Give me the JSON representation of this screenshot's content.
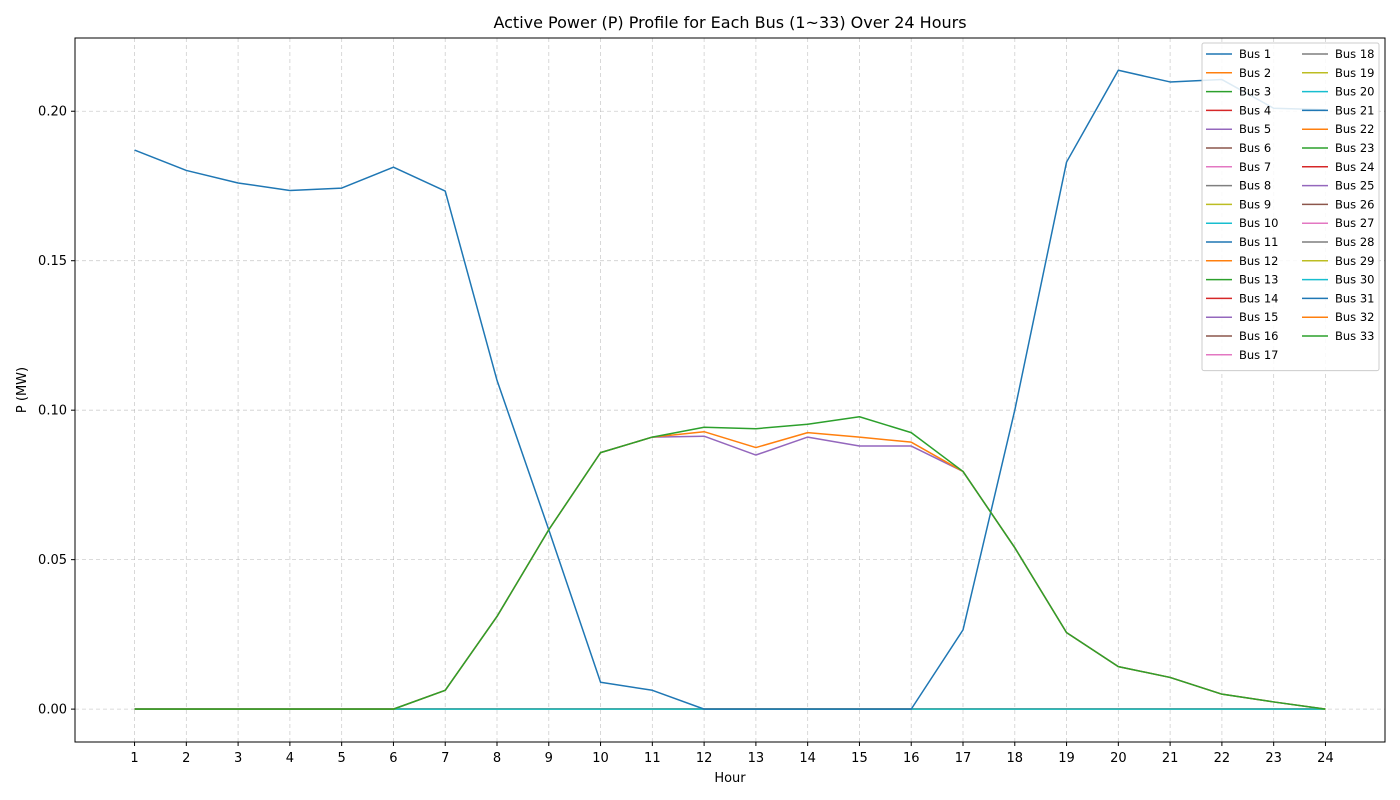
{
  "chart_data": {
    "type": "line",
    "title": "Active Power (P) Profile for Each Bus (1~33) Over 24 Hours",
    "xlabel": "Hour",
    "ylabel": "P (MW)",
    "x": [
      1,
      2,
      3,
      4,
      5,
      6,
      7,
      8,
      9,
      10,
      11,
      12,
      13,
      14,
      15,
      16,
      17,
      18,
      19,
      20,
      21,
      22,
      23,
      24
    ],
    "xlim": [
      -0.15,
      25.15
    ],
    "ylim": [
      -0.011,
      0.2245
    ],
    "yticks": [
      0.0,
      0.05,
      0.1,
      0.15,
      0.2
    ],
    "ytick_labels": [
      "0.00",
      "0.05",
      "0.10",
      "0.15",
      "0.20"
    ],
    "grid": true,
    "legend_position": "top-right",
    "legend_columns": 2,
    "series": [
      {
        "name": "Bus 1",
        "color": "#1f77b4",
        "values": [
          0,
          0,
          0,
          0,
          0,
          0,
          0,
          0,
          0,
          0,
          0,
          0,
          0,
          0,
          0,
          0,
          0,
          0,
          0,
          0,
          0,
          0,
          0,
          0
        ]
      },
      {
        "name": "Bus 2",
        "color": "#ff7f0e",
        "values": [
          0,
          0,
          0,
          0,
          0,
          0,
          0,
          0,
          0,
          0,
          0,
          0,
          0,
          0,
          0,
          0,
          0,
          0,
          0,
          0,
          0,
          0,
          0,
          0
        ]
      },
      {
        "name": "Bus 3",
        "color": "#2ca02c",
        "values": [
          0,
          0,
          0,
          0,
          0,
          0,
          0,
          0,
          0,
          0,
          0,
          0,
          0,
          0,
          0,
          0,
          0,
          0,
          0,
          0,
          0,
          0,
          0,
          0
        ]
      },
      {
        "name": "Bus 4",
        "color": "#d62728",
        "values": [
          0,
          0,
          0,
          0,
          0,
          0,
          0,
          0,
          0,
          0,
          0,
          0,
          0,
          0,
          0,
          0,
          0,
          0,
          0,
          0,
          0,
          0,
          0,
          0
        ]
      },
      {
        "name": "Bus 5",
        "color": "#9467bd",
        "values": [
          0,
          0,
          0,
          0,
          0,
          0,
          0,
          0,
          0,
          0,
          0,
          0,
          0,
          0,
          0,
          0,
          0,
          0,
          0,
          0,
          0,
          0,
          0,
          0
        ]
      },
      {
        "name": "Bus 6",
        "color": "#8c564b",
        "values": [
          0,
          0,
          0,
          0,
          0,
          0,
          0,
          0,
          0,
          0,
          0,
          0,
          0,
          0,
          0,
          0,
          0,
          0,
          0,
          0,
          0,
          0,
          0,
          0
        ]
      },
      {
        "name": "Bus 7",
        "color": "#e377c2",
        "values": [
          0,
          0,
          0,
          0,
          0,
          0,
          0,
          0,
          0,
          0,
          0,
          0,
          0,
          0,
          0,
          0,
          0,
          0,
          0,
          0,
          0,
          0,
          0,
          0
        ]
      },
      {
        "name": "Bus 8",
        "color": "#7f7f7f",
        "values": [
          0,
          0,
          0,
          0,
          0,
          0,
          0,
          0,
          0,
          0,
          0,
          0,
          0,
          0,
          0,
          0,
          0,
          0,
          0,
          0,
          0,
          0,
          0,
          0
        ]
      },
      {
        "name": "Bus 9",
        "color": "#bcbd22",
        "values": [
          0,
          0,
          0,
          0,
          0,
          0,
          0,
          0,
          0,
          0,
          0,
          0,
          0,
          0,
          0,
          0,
          0,
          0,
          0,
          0,
          0,
          0,
          0,
          0
        ]
      },
      {
        "name": "Bus 10",
        "color": "#17becf",
        "values": [
          0,
          0,
          0,
          0,
          0,
          0,
          0,
          0,
          0,
          0,
          0,
          0,
          0,
          0,
          0,
          0,
          0,
          0,
          0,
          0,
          0,
          0,
          0,
          0
        ]
      },
      {
        "name": "Bus 11",
        "color": "#1f77b4",
        "values": [
          0,
          0,
          0,
          0,
          0,
          0,
          0,
          0,
          0,
          0,
          0,
          0,
          0,
          0,
          0,
          0,
          0,
          0,
          0,
          0,
          0,
          0,
          0,
          0
        ]
      },
      {
        "name": "Bus 12",
        "color": "#ff7f0e",
        "values": [
          0,
          0,
          0,
          0,
          0,
          0,
          0,
          0,
          0,
          0,
          0,
          0,
          0,
          0,
          0,
          0,
          0,
          0,
          0,
          0,
          0,
          0,
          0,
          0
        ]
      },
      {
        "name": "Bus 13",
        "color": "#2ca02c",
        "values": [
          0,
          0,
          0,
          0,
          0,
          0,
          0,
          0,
          0,
          0,
          0,
          0,
          0,
          0,
          0,
          0,
          0,
          0,
          0,
          0,
          0,
          0,
          0,
          0
        ]
      },
      {
        "name": "Bus 14",
        "color": "#d62728",
        "values": [
          0,
          0,
          0,
          0,
          0,
          0,
          0,
          0,
          0,
          0,
          0,
          0,
          0,
          0,
          0,
          0,
          0,
          0,
          0,
          0,
          0,
          0,
          0,
          0
        ]
      },
      {
        "name": "Bus 15",
        "color": "#9467bd",
        "values": [
          0,
          0,
          0,
          0,
          0,
          0,
          0.0063,
          0.031,
          0.06,
          0.0858,
          0.091,
          0.0913,
          0.085,
          0.091,
          0.088,
          0.088,
          0.0795,
          0.054,
          0.0256,
          0.0142,
          0.0106,
          0.005,
          0.0024,
          0
        ]
      },
      {
        "name": "Bus 16",
        "color": "#8c564b",
        "values": [
          0,
          0,
          0,
          0,
          0,
          0,
          0,
          0,
          0,
          0,
          0,
          0,
          0,
          0,
          0,
          0,
          0,
          0,
          0,
          0,
          0,
          0,
          0,
          0
        ]
      },
      {
        "name": "Bus 17",
        "color": "#e377c2",
        "values": [
          0,
          0,
          0,
          0,
          0,
          0,
          0,
          0,
          0,
          0,
          0,
          0,
          0,
          0,
          0,
          0,
          0,
          0,
          0,
          0,
          0,
          0,
          0,
          0
        ]
      },
      {
        "name": "Bus 18",
        "color": "#7f7f7f",
        "values": [
          0,
          0,
          0,
          0,
          0,
          0,
          0,
          0,
          0,
          0,
          0,
          0,
          0,
          0,
          0,
          0,
          0,
          0,
          0,
          0,
          0,
          0,
          0,
          0
        ]
      },
      {
        "name": "Bus 19",
        "color": "#bcbd22",
        "values": [
          0,
          0,
          0,
          0,
          0,
          0,
          0,
          0,
          0,
          0,
          0,
          0,
          0,
          0,
          0,
          0,
          0,
          0,
          0,
          0,
          0,
          0,
          0,
          0
        ]
      },
      {
        "name": "Bus 20",
        "color": "#17becf",
        "values": [
          0,
          0,
          0,
          0,
          0,
          0,
          0,
          0,
          0,
          0,
          0,
          0,
          0,
          0,
          0,
          0,
          0,
          0,
          0,
          0,
          0,
          0,
          0,
          0
        ]
      },
      {
        "name": "Bus 21",
        "color": "#1f77b4",
        "values": [
          0,
          0,
          0,
          0,
          0,
          0,
          0,
          0,
          0,
          0,
          0,
          0,
          0,
          0,
          0,
          0,
          0,
          0,
          0,
          0,
          0,
          0,
          0,
          0
        ]
      },
      {
        "name": "Bus 22",
        "color": "#ff7f0e",
        "values": [
          0,
          0,
          0,
          0,
          0,
          0,
          0,
          0,
          0,
          0,
          0,
          0,
          0,
          0,
          0,
          0,
          0,
          0,
          0,
          0,
          0,
          0,
          0,
          0
        ]
      },
      {
        "name": "Bus 23",
        "color": "#2ca02c",
        "values": [
          0,
          0,
          0,
          0,
          0,
          0,
          0,
          0,
          0,
          0,
          0,
          0,
          0,
          0,
          0,
          0,
          0,
          0,
          0,
          0,
          0,
          0,
          0,
          0
        ]
      },
      {
        "name": "Bus 24",
        "color": "#d62728",
        "values": [
          0,
          0,
          0,
          0,
          0,
          0,
          0,
          0,
          0,
          0,
          0,
          0,
          0,
          0,
          0,
          0,
          0,
          0,
          0,
          0,
          0,
          0,
          0,
          0
        ]
      },
      {
        "name": "Bus 25",
        "color": "#9467bd",
        "values": [
          0,
          0,
          0,
          0,
          0,
          0,
          0,
          0,
          0,
          0,
          0,
          0,
          0,
          0,
          0,
          0,
          0,
          0,
          0,
          0,
          0,
          0,
          0,
          0
        ]
      },
      {
        "name": "Bus 26",
        "color": "#8c564b",
        "values": [
          0,
          0,
          0,
          0,
          0,
          0,
          0,
          0,
          0,
          0,
          0,
          0,
          0,
          0,
          0,
          0,
          0,
          0,
          0,
          0,
          0,
          0,
          0,
          0
        ]
      },
      {
        "name": "Bus 27",
        "color": "#e377c2",
        "values": [
          0,
          0,
          0,
          0,
          0,
          0,
          0,
          0,
          0,
          0,
          0,
          0,
          0,
          0,
          0,
          0,
          0,
          0,
          0,
          0,
          0,
          0,
          0,
          0
        ]
      },
      {
        "name": "Bus 28",
        "color": "#7f7f7f",
        "values": [
          0,
          0,
          0,
          0,
          0,
          0,
          0,
          0,
          0,
          0,
          0,
          0,
          0,
          0,
          0,
          0,
          0,
          0,
          0,
          0,
          0,
          0,
          0,
          0
        ]
      },
      {
        "name": "Bus 29",
        "color": "#bcbd22",
        "values": [
          0,
          0,
          0,
          0,
          0,
          0,
          0,
          0,
          0,
          0,
          0,
          0,
          0,
          0,
          0,
          0,
          0,
          0,
          0,
          0,
          0,
          0,
          0,
          0
        ]
      },
      {
        "name": "Bus 30",
        "color": "#17becf",
        "values": [
          0,
          0,
          0,
          0,
          0,
          0,
          0,
          0,
          0,
          0,
          0,
          0,
          0,
          0,
          0,
          0,
          0,
          0,
          0,
          0,
          0,
          0,
          0,
          0
        ]
      },
      {
        "name": "Bus 31",
        "color": "#1f77b4",
        "values": [
          0.187,
          0.1802,
          0.176,
          0.1735,
          0.1743,
          0.1813,
          0.1733,
          0.11,
          0.06,
          0.009,
          0.0063,
          0,
          0,
          0,
          0,
          0,
          0.0265,
          0.1,
          0.183,
          0.2137,
          0.2098,
          0.2106,
          0.201,
          0.2005
        ]
      },
      {
        "name": "Bus 32",
        "color": "#ff7f0e",
        "values": [
          0,
          0,
          0,
          0,
          0,
          0,
          0.0063,
          0.031,
          0.06,
          0.0858,
          0.091,
          0.0928,
          0.0875,
          0.0925,
          0.091,
          0.0893,
          0.0795,
          0.054,
          0.0256,
          0.0142,
          0.0106,
          0.005,
          0.0024,
          0
        ]
      },
      {
        "name": "Bus 33",
        "color": "#2ca02c",
        "values": [
          0,
          0,
          0,
          0,
          0,
          0,
          0.0063,
          0.031,
          0.06,
          0.0858,
          0.091,
          0.0943,
          0.0938,
          0.0953,
          0.0978,
          0.0925,
          0.0795,
          0.054,
          0.0256,
          0.0142,
          0.0106,
          0.005,
          0.0024,
          0
        ]
      }
    ]
  }
}
